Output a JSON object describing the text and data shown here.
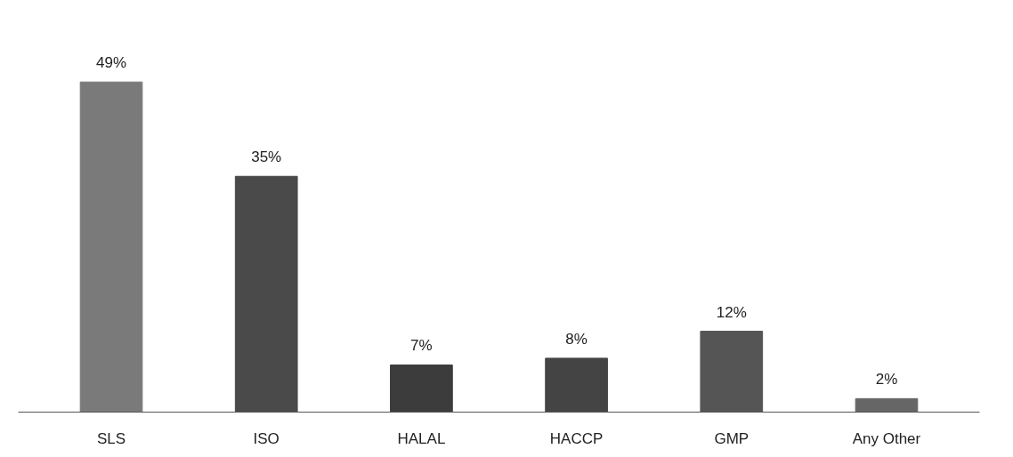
{
  "chart_data": {
    "type": "bar",
    "categories": [
      "SLS",
      "ISO",
      "HALAL",
      "HACCP",
      "GMP",
      "Any Other"
    ],
    "values": [
      49,
      35,
      7,
      8,
      12,
      2
    ],
    "colors": [
      "#7a7a7a",
      "#4a4a4a",
      "#3c3c3c",
      "#444444",
      "#555555",
      "#666666"
    ],
    "value_labels": [
      "49%",
      "35%",
      "7%",
      "8%",
      "12%",
      "2%"
    ],
    "grid": false
  }
}
